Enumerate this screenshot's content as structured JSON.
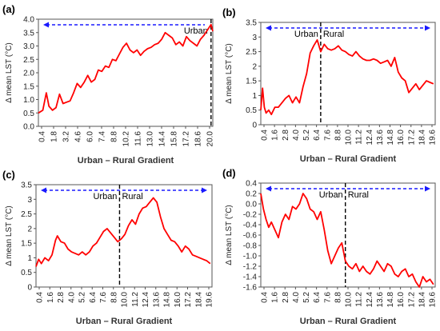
{
  "chart_data": [
    {
      "id": "a",
      "panel": "(a)",
      "type": "line",
      "title": "",
      "xlabel": "Urban – Rural Gradient",
      "ylabel": "Δ mean LST (°C)",
      "x_tick_labels": [
        "0.4",
        "1.8",
        "3.2",
        "4.6",
        "6.0",
        "7.4",
        "8.8",
        "10.2",
        "11.6",
        "13.0",
        "14.4",
        "15.8",
        "17.2",
        "18.6",
        "20.0"
      ],
      "xlim": [
        0.4,
        20.2
      ],
      "ylim": [
        0,
        4
      ],
      "y_ticks": [
        0,
        0.5,
        1,
        1.5,
        2,
        2.5,
        3,
        3.5,
        4
      ],
      "y_tick_labels": [
        "0.0",
        "0.5",
        "1.0",
        "1.5",
        "2.0",
        "2.5",
        "3.0",
        "3.5",
        "4.0"
      ],
      "boundary_x": 20.0,
      "zone_labels": [
        "Urban"
      ],
      "arrow": "left",
      "color": "#ff0000",
      "series": [
        {
          "x": [
            0.4,
            0.9,
            1.3,
            1.6,
            2.0,
            2.4,
            2.8,
            3.2,
            3.6,
            4.0,
            4.4,
            4.8,
            5.2,
            5.6,
            6.0,
            6.4,
            6.8,
            7.2,
            7.6,
            8.0,
            8.4,
            8.8,
            9.2,
            9.6,
            10.0,
            10.4,
            10.8,
            11.2,
            11.6,
            12.0,
            12.4,
            12.8,
            13.2,
            13.6,
            14.0,
            14.4,
            14.8,
            15.2,
            15.6,
            16.0,
            16.4,
            16.8,
            17.2,
            17.6,
            18.0,
            18.4,
            18.8,
            19.2,
            19.6,
            20.0,
            20.2
          ],
          "y": [
            0.5,
            0.6,
            1.25,
            0.75,
            0.6,
            0.7,
            1.2,
            0.85,
            0.9,
            0.95,
            1.25,
            1.6,
            1.45,
            1.65,
            1.9,
            1.65,
            1.75,
            2.1,
            2.05,
            2.25,
            2.2,
            2.5,
            2.45,
            2.7,
            2.95,
            3.1,
            2.85,
            2.75,
            2.85,
            2.65,
            2.8,
            2.9,
            2.95,
            3.05,
            3.1,
            3.25,
            3.5,
            3.4,
            3.3,
            3.05,
            3.15,
            3.0,
            3.35,
            3.2,
            3.1,
            3.0,
            3.25,
            3.4,
            3.6,
            3.8,
            3.55
          ]
        }
      ]
    },
    {
      "id": "b",
      "panel": "(b)",
      "type": "line",
      "title": "",
      "xlabel": "Urban – Rural Gradient",
      "ylabel": "Δ mean LST (°C)",
      "x_tick_labels": [
        "0.4",
        "1.6",
        "2.8",
        "4.0",
        "5.2",
        "6.4",
        "7.6",
        "8.8",
        "10.0",
        "11.2",
        "12.4",
        "13.6",
        "14.8",
        "16.0",
        "17.2",
        "18.4",
        "19.6"
      ],
      "xlim": [
        0.4,
        20.2
      ],
      "ylim": [
        0,
        3.5
      ],
      "y_ticks": [
        0,
        0.5,
        1,
        1.5,
        2,
        2.5,
        3,
        3.5
      ],
      "y_tick_labels": [
        "0",
        "0.5",
        "1",
        "1.5",
        "2",
        "2.5",
        "3",
        "3.5"
      ],
      "boundary_x": 7.2,
      "zone_labels": [
        "Urban",
        "Rural"
      ],
      "arrow": "both",
      "color": "#ff0000",
      "series": [
        {
          "x": [
            0.4,
            0.6,
            0.8,
            1.0,
            1.3,
            1.6,
            2.0,
            2.4,
            2.8,
            3.2,
            3.6,
            4.0,
            4.4,
            4.8,
            5.2,
            5.6,
            6.0,
            6.4,
            6.8,
            7.2,
            7.6,
            8.0,
            8.4,
            8.8,
            9.2,
            9.6,
            10.0,
            10.4,
            10.8,
            11.2,
            11.6,
            12.0,
            12.4,
            12.8,
            13.2,
            13.6,
            14.0,
            14.4,
            14.8,
            15.2,
            15.6,
            16.0,
            16.4,
            16.8,
            17.2,
            17.6,
            18.0,
            18.4,
            18.8,
            19.2,
            19.6,
            20.0
          ],
          "y": [
            0.5,
            1.25,
            0.6,
            0.4,
            0.5,
            0.35,
            0.6,
            0.6,
            0.75,
            0.9,
            1.0,
            0.75,
            0.95,
            0.75,
            1.3,
            1.75,
            2.45,
            2.7,
            2.9,
            2.5,
            2.75,
            2.6,
            2.55,
            2.6,
            2.7,
            2.55,
            2.5,
            2.4,
            2.35,
            2.5,
            2.35,
            2.25,
            2.2,
            2.2,
            2.25,
            2.2,
            2.1,
            2.15,
            2.2,
            2.0,
            2.3,
            1.8,
            1.6,
            1.5,
            1.1,
            1.25,
            1.4,
            1.2,
            1.35,
            1.5,
            1.45,
            1.4
          ]
        }
      ]
    },
    {
      "id": "c",
      "panel": "(c)",
      "type": "line",
      "title": "",
      "xlabel": "Urban – Rural Gradient",
      "ylabel": "Δ mean LST (°C)",
      "x_tick_labels": [
        "0.4",
        "1.6",
        "2.8",
        "4.0",
        "5.2",
        "6.4",
        "7.6",
        "8.8",
        "10.0",
        "11.2",
        "12.4",
        "13.6",
        "14.8",
        "16.0",
        "17.2",
        "18.4",
        "19.6"
      ],
      "xlim": [
        0.4,
        20.2
      ],
      "ylim": [
        0,
        3.5
      ],
      "y_ticks": [
        0,
        0.5,
        1,
        1.5,
        2,
        2.5,
        3,
        3.5
      ],
      "y_tick_labels": [
        "0",
        "0.5",
        "1",
        "1.5",
        "2",
        "2.5",
        "3",
        "3.5"
      ],
      "boundary_x": 9.8,
      "zone_labels": [
        "Urban",
        "Rural"
      ],
      "arrow": "both",
      "color": "#ff0000",
      "series": [
        {
          "x": [
            0.4,
            0.7,
            1.0,
            1.4,
            1.8,
            2.2,
            2.6,
            2.8,
            3.2,
            3.6,
            4.0,
            4.4,
            4.8,
            5.2,
            5.6,
            6.0,
            6.4,
            6.8,
            7.2,
            7.6,
            8.0,
            8.4,
            8.8,
            9.2,
            9.6,
            10.0,
            10.4,
            10.8,
            11.2,
            11.6,
            12.0,
            12.4,
            12.8,
            13.2,
            13.6,
            14.0,
            14.4,
            14.8,
            15.2,
            15.6,
            16.0,
            16.4,
            16.8,
            17.2,
            17.6,
            18.0,
            18.4,
            18.8,
            19.2,
            19.6,
            20.0
          ],
          "y": [
            0.7,
            0.95,
            0.8,
            1.0,
            0.9,
            1.1,
            1.6,
            1.75,
            1.55,
            1.5,
            1.3,
            1.2,
            1.15,
            1.1,
            1.2,
            1.1,
            1.2,
            1.4,
            1.5,
            1.7,
            1.9,
            2.0,
            1.85,
            1.7,
            1.55,
            1.65,
            1.8,
            2.1,
            2.3,
            2.15,
            2.5,
            2.7,
            2.75,
            2.9,
            3.05,
            2.9,
            2.4,
            2.0,
            1.8,
            1.6,
            1.55,
            1.4,
            1.2,
            1.4,
            1.3,
            1.1,
            1.05,
            1.0,
            0.95,
            0.9,
            0.8
          ]
        }
      ]
    },
    {
      "id": "d",
      "panel": "(d)",
      "type": "line",
      "title": "",
      "xlabel": "Urban – Rural Gradient",
      "ylabel": "Δ mean LST (°C)",
      "x_tick_labels": [
        "0.4",
        "1.6",
        "2.8",
        "4.0",
        "5.2",
        "6.4",
        "7.6",
        "8.8",
        "10.0",
        "11.2",
        "12.4",
        "13.6",
        "14.8",
        "16.0",
        "17.2",
        "18.4",
        "19.6"
      ],
      "xlim": [
        0.4,
        20.2
      ],
      "ylim": [
        -1.6,
        0.4
      ],
      "y_ticks": [
        -1.6,
        -1.4,
        -1.2,
        -1,
        -0.8,
        -0.6,
        -0.4,
        -0.2,
        0,
        0.2,
        0.4
      ],
      "y_tick_labels": [
        "-1.6",
        "-1.4",
        "-1.2",
        "-1.0",
        "-0.8",
        "-0.6",
        "-0.4",
        "-0.2",
        "0.0",
        "0.2",
        "0.4"
      ],
      "boundary_x": 10.0,
      "zone_labels": [
        "Urban",
        "Rural"
      ],
      "arrow": "both",
      "color": "#ff0000",
      "series": [
        {
          "x": [
            0.4,
            0.7,
            1.0,
            1.3,
            1.6,
            2.0,
            2.4,
            2.8,
            3.2,
            3.6,
            4.0,
            4.4,
            4.8,
            5.2,
            5.6,
            6.0,
            6.4,
            6.8,
            7.2,
            7.6,
            8.0,
            8.4,
            8.8,
            9.2,
            9.6,
            10.0,
            10.4,
            10.8,
            11.2,
            11.6,
            12.0,
            12.4,
            12.8,
            13.2,
            13.6,
            14.0,
            14.4,
            14.8,
            15.2,
            15.6,
            16.0,
            16.4,
            16.8,
            17.2,
            17.6,
            18.0,
            18.4,
            18.8,
            19.2,
            19.6,
            20.0
          ],
          "y": [
            0.2,
            -0.1,
            -0.3,
            -0.45,
            -0.35,
            -0.5,
            -0.65,
            -0.35,
            -0.2,
            -0.3,
            -0.05,
            -0.1,
            0.0,
            0.2,
            0.1,
            -0.1,
            -0.15,
            -0.3,
            -0.15,
            -0.5,
            -0.9,
            -1.15,
            -1.0,
            -0.85,
            -0.75,
            -1.1,
            -1.2,
            -1.25,
            -1.15,
            -1.3,
            -1.2,
            -1.3,
            -1.35,
            -1.25,
            -1.1,
            -1.2,
            -1.3,
            -1.15,
            -1.2,
            -1.35,
            -1.4,
            -1.3,
            -1.25,
            -1.4,
            -1.35,
            -1.5,
            -1.6,
            -1.4,
            -1.5,
            -1.45,
            -1.55
          ]
        }
      ]
    }
  ]
}
